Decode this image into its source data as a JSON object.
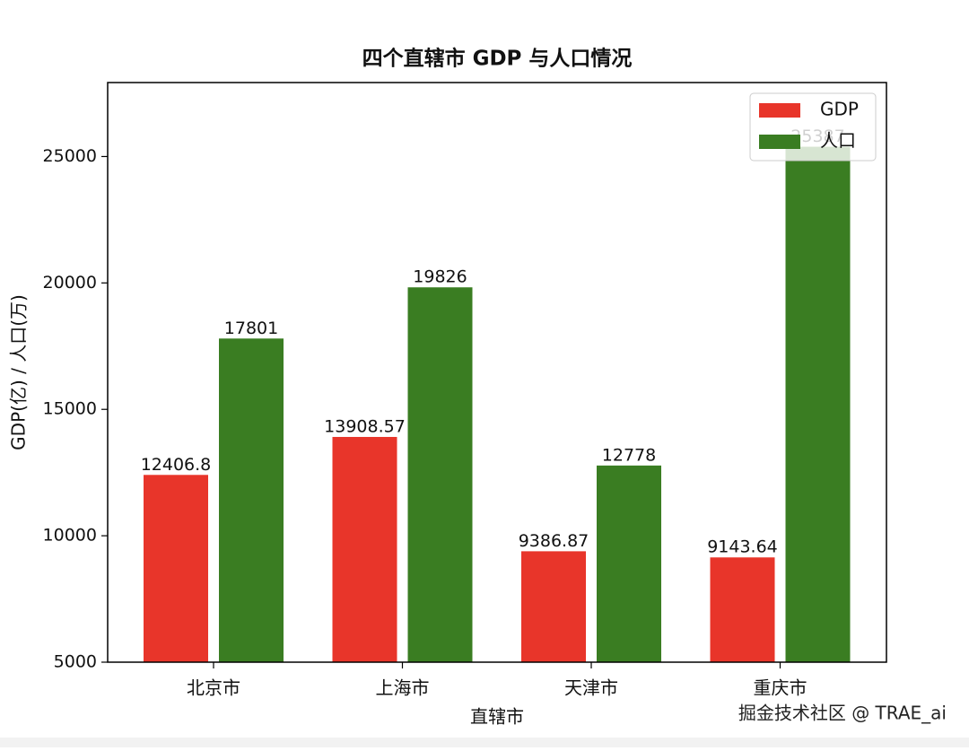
{
  "chart_data": {
    "type": "bar",
    "title": "四个直辖市 GDP 与人口情况",
    "x_label": "直辖市",
    "y_label": "GDP(亿) / 人口(万)",
    "categories": [
      "北京市",
      "上海市",
      "天津市",
      "重庆市"
    ],
    "series": [
      {
        "name": "GDP",
        "color": "#e8352a",
        "values": [
          12406.8,
          13908.57,
          9386.87,
          9143.64
        ]
      },
      {
        "name": "人口",
        "color": "#3a7d22",
        "values": [
          17801,
          19826,
          12778,
          25387
        ]
      }
    ],
    "ylim": [
      5000,
      27926
    ],
    "yticks": [
      5000,
      10000,
      15000,
      20000,
      25000
    ],
    "legend": "upper right",
    "watermark": "掘金技术社区 @ TRAE_ai"
  }
}
